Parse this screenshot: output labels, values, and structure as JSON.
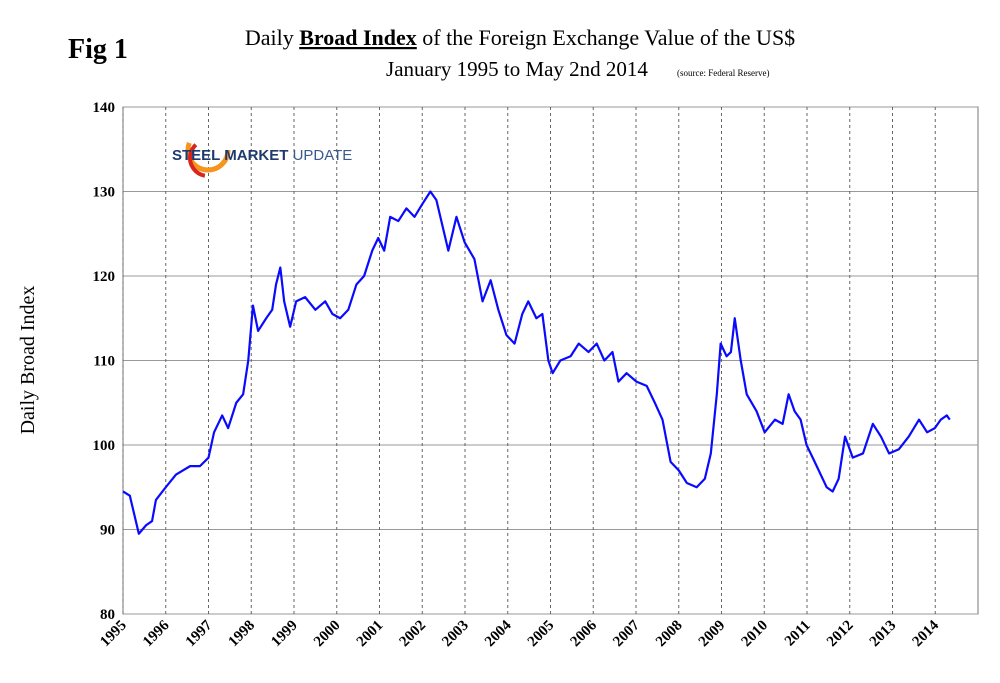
{
  "figure_label": "Fig 1",
  "logo": {
    "brand": "STEEL MARKET",
    "suffix": "UPDATE"
  },
  "chart_data": {
    "type": "line",
    "title": {
      "pre": "Daily",
      "emphasis": "Broad Index",
      "post": "of the Foreign Exchange Value of the US$"
    },
    "subtitle": "January 1995 to May 2nd 2014",
    "source": "(source: Federal Reserve)",
    "y_label": "Daily Broad Index",
    "xlim": [
      1995,
      2015
    ],
    "xticks": [
      1995,
      1996,
      1997,
      1998,
      1999,
      2000,
      2001,
      2002,
      2003,
      2004,
      2005,
      2006,
      2007,
      2008,
      2009,
      2010,
      2011,
      2012,
      2013,
      2014
    ],
    "ylim": [
      80,
      140
    ],
    "yticks": [
      80,
      90,
      100,
      110,
      120,
      130,
      140
    ],
    "grid": true,
    "x": [
      1995.0,
      1995.16,
      1995.3,
      1995.37,
      1995.54,
      1995.68,
      1995.77,
      1996.0,
      1996.24,
      1996.57,
      1996.8,
      1997.0,
      1997.13,
      1997.32,
      1997.46,
      1997.65,
      1997.81,
      1997.93,
      1998.04,
      1998.16,
      1998.35,
      1998.49,
      1998.58,
      1998.68,
      1998.77,
      1998.91,
      1999.05,
      1999.26,
      1999.5,
      1999.73,
      1999.9,
      2000.08,
      2000.27,
      2000.46,
      2000.64,
      2000.83,
      2000.97,
      2001.11,
      2001.25,
      2001.44,
      2001.63,
      2001.82,
      2002.0,
      2002.19,
      2002.33,
      2002.47,
      2002.61,
      2002.8,
      2002.99,
      2003.22,
      2003.41,
      2003.6,
      2003.78,
      2003.97,
      2004.16,
      2004.34,
      2004.48,
      2004.67,
      2004.81,
      2004.95,
      2005.05,
      2005.23,
      2005.47,
      2005.66,
      2005.89,
      2006.08,
      2006.26,
      2006.45,
      2006.59,
      2006.78,
      2007.01,
      2007.25,
      2007.44,
      2007.62,
      2007.81,
      2008.0,
      2008.19,
      2008.42,
      2008.61,
      2008.75,
      2008.89,
      2008.98,
      2009.12,
      2009.22,
      2009.31,
      2009.45,
      2009.59,
      2009.82,
      2010.01,
      2010.25,
      2010.43,
      2010.57,
      2010.71,
      2010.85,
      2010.99,
      2011.18,
      2011.32,
      2011.46,
      2011.6,
      2011.74,
      2011.89,
      2012.07,
      2012.31,
      2012.54,
      2012.73,
      2012.92,
      2013.15,
      2013.38,
      2013.62,
      2013.81,
      2013.99,
      2014.13,
      2014.27,
      2014.34
    ],
    "series": [
      {
        "name": "Daily Broad Index",
        "color": "#0a0aff",
        "values": [
          94.5,
          94,
          91,
          89.5,
          90.5,
          91,
          93.5,
          95,
          96.5,
          97.5,
          97.5,
          98.5,
          101.5,
          103.5,
          102,
          105,
          106,
          110,
          116.5,
          113.5,
          115,
          116,
          119,
          121,
          117,
          114,
          117,
          117.5,
          116,
          117,
          115.5,
          115,
          116,
          119,
          120,
          123,
          124.5,
          123,
          127,
          126.5,
          128,
          127,
          128.5,
          130,
          129,
          126,
          123,
          127,
          124,
          122,
          117,
          119.5,
          116,
          113,
          112,
          115.5,
          117,
          115,
          115.5,
          110,
          108.5,
          110,
          110.5,
          112,
          111,
          112,
          110,
          111,
          107.5,
          108.5,
          107.5,
          107,
          105,
          103,
          98,
          97,
          95.5,
          95,
          96,
          99,
          106,
          112,
          110.5,
          111,
          115,
          110,
          106,
          104,
          101.5,
          103,
          102.5,
          106,
          104,
          103,
          100,
          98,
          96.5,
          95,
          94.5,
          96,
          101,
          98.5,
          99,
          102.5,
          101,
          99,
          99.5,
          101,
          103,
          101.5,
          102,
          103,
          103.5,
          103
        ]
      }
    ]
  }
}
